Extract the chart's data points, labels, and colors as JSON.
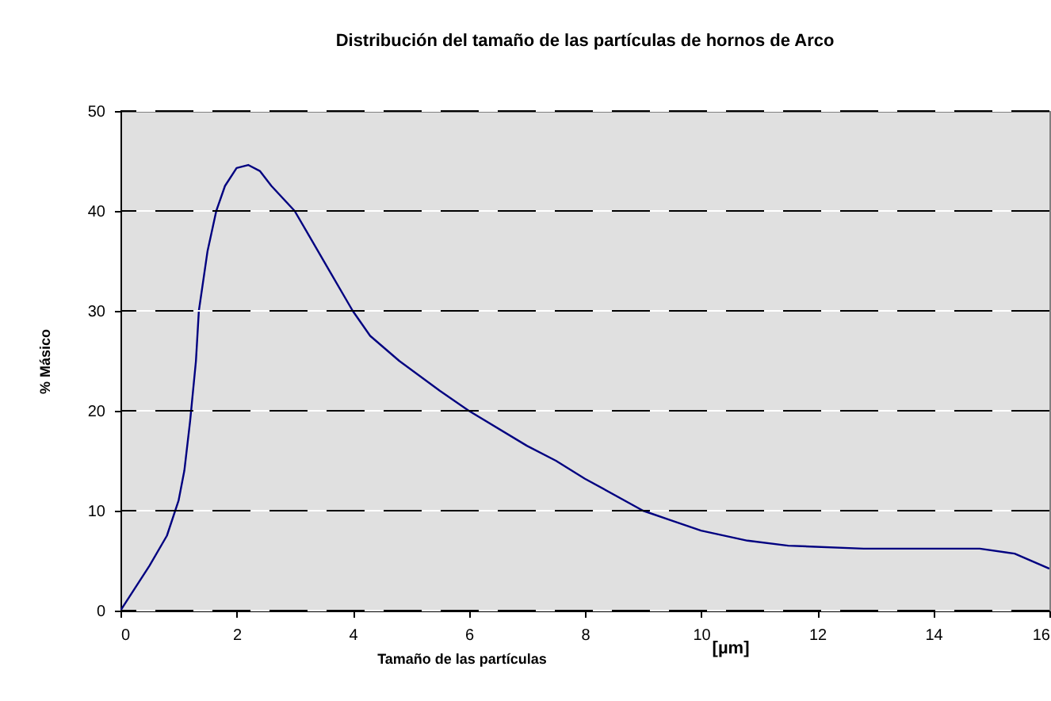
{
  "chart_data": {
    "type": "line",
    "title": "Distribución del tamaño de las partículas de hornos de Arco",
    "xlabel": "Tamaño de las partículas",
    "ylabel": "% Másico",
    "annotations": [
      "[µm]"
    ],
    "x": [
      0,
      0.5,
      0.8,
      1.0,
      1.1,
      1.2,
      1.3,
      1.35,
      1.5,
      1.65,
      1.8,
      2.0,
      2.2,
      2.4,
      2.6,
      3.0,
      3.2,
      3.6,
      4.0,
      4.3,
      4.8,
      5.5,
      6.0,
      7.0,
      7.5,
      8.0,
      9.0,
      9.5,
      10.0,
      10.8,
      11.5,
      12.8,
      14.8,
      15.4,
      16.0
    ],
    "series": [
      {
        "color": "#000080",
        "values": [
          0,
          4.5,
          7.5,
          11,
          14,
          19,
          25,
          30,
          36,
          40,
          42.5,
          44.3,
          44.6,
          44,
          42.5,
          40,
          38,
          34,
          30,
          27.5,
          25,
          22,
          20,
          16.5,
          15,
          13.2,
          10,
          9,
          8,
          7,
          6.5,
          6.2,
          6.2,
          5.7,
          4.2
        ]
      }
    ],
    "xlim": [
      0,
      16
    ],
    "ylim": [
      0,
      50
    ],
    "xticks": [
      0,
      2,
      4,
      6,
      8,
      10,
      12,
      14,
      16
    ],
    "yticks": [
      0,
      10,
      20,
      30,
      40,
      50
    ],
    "grid": "y",
    "marker": "none",
    "line_style": "solid"
  }
}
